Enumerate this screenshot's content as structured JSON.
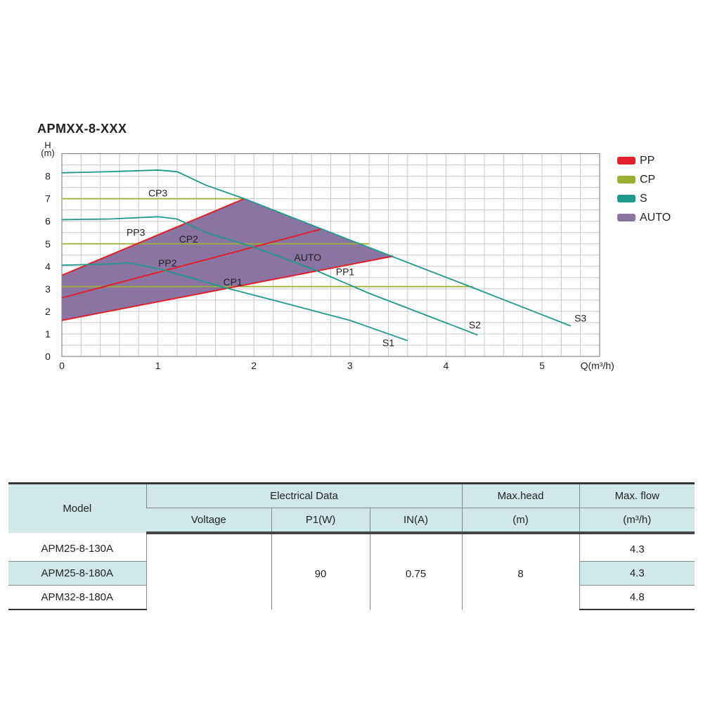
{
  "chart_data": {
    "type": "line",
    "title": "APMXX-8-XXX",
    "xlabel": "Q(m³/h)",
    "ylabel_top": "H",
    "ylabel_unit": "(m)",
    "xlim": [
      0,
      5.6
    ],
    "ylim": [
      0,
      9
    ],
    "xticks": [
      "0",
      "1",
      "2",
      "3",
      "4",
      "5"
    ],
    "yticks": [
      "0",
      "1",
      "2",
      "3",
      "4",
      "5",
      "6",
      "7",
      "8"
    ],
    "grid": true,
    "legend_position": "right",
    "legend": [
      {
        "label": "PP",
        "color": "#e1202b"
      },
      {
        "label": "CP",
        "color": "#9bb032"
      },
      {
        "label": "S",
        "color": "#1e9a8c"
      },
      {
        "label": "AUTO",
        "color": "#8a74a2"
      }
    ],
    "series": [
      {
        "name": "S3",
        "group": "S",
        "points": [
          [
            0,
            8.15
          ],
          [
            0.5,
            8.2
          ],
          [
            1.0,
            8.27
          ],
          [
            1.2,
            8.2
          ],
          [
            1.5,
            7.6
          ],
          [
            1.9,
            7.0
          ],
          [
            2.5,
            6.0
          ],
          [
            3.4,
            4.5
          ],
          [
            4.25,
            3.1
          ],
          [
            5.3,
            1.35
          ]
        ]
      },
      {
        "name": "S2",
        "group": "S",
        "points": [
          [
            0,
            6.07
          ],
          [
            0.5,
            6.1
          ],
          [
            1.0,
            6.2
          ],
          [
            1.2,
            6.1
          ],
          [
            1.5,
            5.5
          ],
          [
            2.0,
            4.85
          ],
          [
            2.6,
            3.9
          ],
          [
            3.2,
            2.8
          ],
          [
            4.33,
            0.95
          ]
        ]
      },
      {
        "name": "S1",
        "group": "S",
        "points": [
          [
            0,
            4.05
          ],
          [
            0.5,
            4.1
          ],
          [
            0.7,
            4.15
          ],
          [
            1.0,
            3.9
          ],
          [
            1.5,
            3.3
          ],
          [
            1.7,
            3.05
          ],
          [
            2.2,
            2.5
          ],
          [
            3.0,
            1.6
          ],
          [
            3.6,
            0.7
          ]
        ]
      },
      {
        "name": "PP3",
        "group": "PP",
        "points": [
          [
            0,
            3.6
          ],
          [
            1.9,
            7.0
          ]
        ]
      },
      {
        "name": "PP2",
        "group": "PP",
        "points": [
          [
            0,
            2.6
          ],
          [
            2.7,
            5.65
          ]
        ]
      },
      {
        "name": "PP1",
        "group": "PP",
        "points": [
          [
            0,
            1.6
          ],
          [
            3.45,
            4.45
          ]
        ]
      },
      {
        "name": "CP3",
        "group": "CP",
        "points": [
          [
            0,
            7.0
          ],
          [
            1.9,
            7.0
          ]
        ]
      },
      {
        "name": "CP2",
        "group": "CP",
        "points": [
          [
            0,
            5.0
          ],
          [
            3.2,
            5.0
          ]
        ]
      },
      {
        "name": "CP1",
        "group": "CP",
        "points": [
          [
            0,
            3.1
          ],
          [
            4.28,
            3.1
          ]
        ]
      }
    ],
    "auto_region": {
      "name": "AUTO",
      "points": [
        [
          0,
          1.6
        ],
        [
          3.45,
          4.45
        ],
        [
          2.5,
          6.0
        ],
        [
          1.9,
          7.0
        ],
        [
          0,
          3.6
        ]
      ]
    },
    "labels": [
      {
        "text": "CP3",
        "x": 1.0,
        "y": 7.1
      },
      {
        "text": "CP2",
        "x": 1.32,
        "y": 5.05
      },
      {
        "text": "CP1",
        "x": 1.78,
        "y": 3.15
      },
      {
        "text": "PP3",
        "x": 0.77,
        "y": 5.35
      },
      {
        "text": "PP2",
        "x": 1.1,
        "y": 4.0
      },
      {
        "text": "PP1",
        "x": 2.95,
        "y": 3.6
      },
      {
        "text": "AUTO",
        "x": 2.56,
        "y": 4.25
      },
      {
        "text": "S1",
        "x": 3.4,
        "y": 0.45
      },
      {
        "text": "S2",
        "x": 4.3,
        "y": 1.25
      },
      {
        "text": "S3",
        "x": 5.4,
        "y": 1.55
      }
    ]
  },
  "table": {
    "headers": {
      "model": "Model",
      "electrical": "Electrical Data",
      "voltage": "Voltage",
      "p1": "P1(W)",
      "in": "IN(A)",
      "max_head": "Max.head",
      "max_head_unit": "(m)",
      "max_flow": "Max. flow",
      "max_flow_unit": "(m³/h)"
    },
    "rows": [
      {
        "model": "APM25-8-130A",
        "flow": "4.3"
      },
      {
        "model": "APM25-8-180A",
        "flow": "4.3"
      },
      {
        "model": "APM32-8-180A",
        "flow": "4.8"
      }
    ],
    "shared": {
      "voltage": "",
      "p1": "90",
      "in": "0.75",
      "head": "8"
    }
  }
}
